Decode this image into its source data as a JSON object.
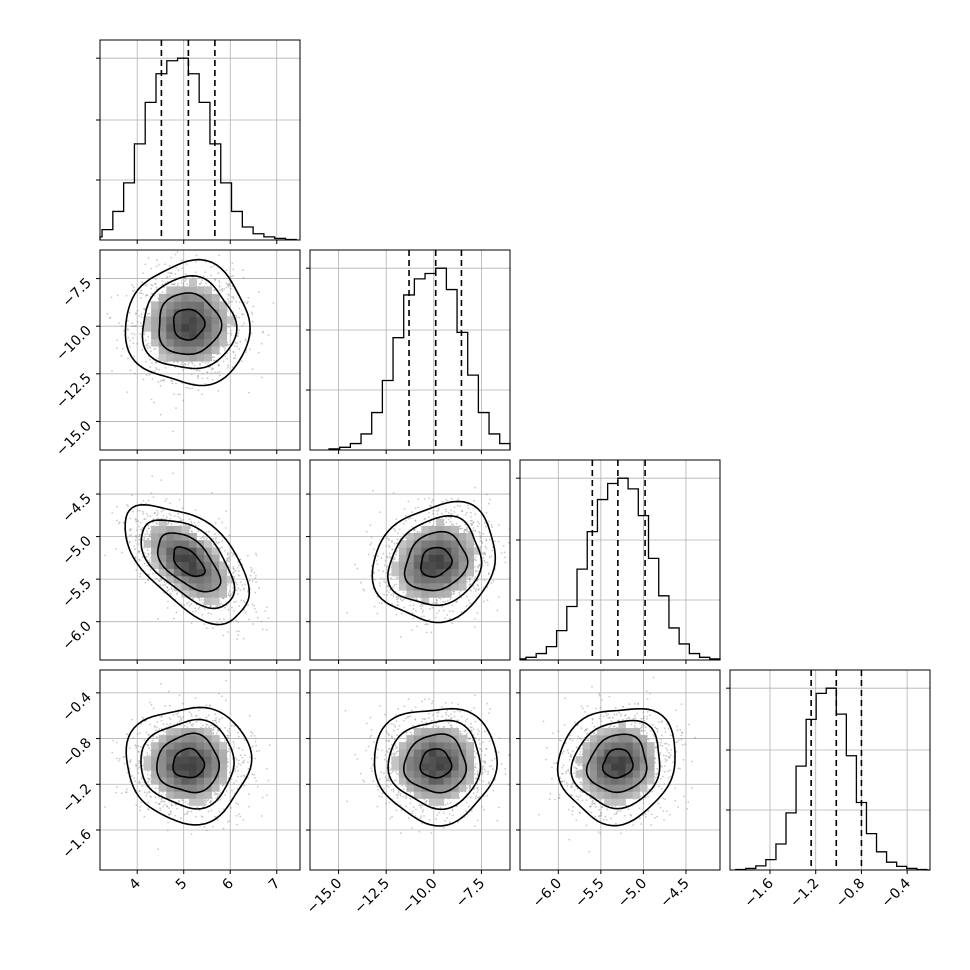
{
  "chart_data": {
    "type": "corner",
    "grid": true,
    "quantile_lines": "dashed",
    "contour_levels": 4,
    "parameters": [
      {
        "index": 0,
        "range": [
          3.2,
          7.5
        ],
        "ticks": [
          4,
          5,
          6,
          7
        ],
        "tick_labels": [
          "4",
          "5",
          "6",
          "7"
        ],
        "median": 5.1,
        "q16": 4.52,
        "q84": 5.67,
        "sigma": 0.58,
        "histogram_counts": [
          2,
          6,
          20,
          55,
          110,
          185,
          265,
          320,
          345,
          350,
          320,
          265,
          185,
          110,
          55,
          25,
          12,
          6,
          3,
          1
        ]
      },
      {
        "index": 1,
        "range": [
          -16.5,
          -6.0
        ],
        "ticks": [
          -15.0,
          -12.5,
          -10.0,
          -7.5
        ],
        "tick_labels": [
          "−15.0",
          "−12.5",
          "−10.0",
          "−7.5"
        ],
        "median": -9.9,
        "q16": -11.3,
        "q84": -8.55,
        "sigma": 1.4,
        "histogram_counts": [
          2,
          5,
          12,
          30,
          70,
          130,
          210,
          290,
          320,
          330,
          340,
          300,
          220,
          140,
          70,
          30,
          12,
          4,
          1,
          0
        ]
      },
      {
        "index": 2,
        "range": [
          -6.45,
          -4.1
        ],
        "ticks": [
          -6.0,
          -5.5,
          -5.0,
          -4.5
        ],
        "tick_labels": [
          "−6.0",
          "−5.5",
          "−5.0",
          "−4.5"
        ],
        "median": -5.3,
        "q16": -5.6,
        "q84": -4.98,
        "sigma": 0.3,
        "histogram_counts": [
          2,
          5,
          12,
          25,
          55,
          100,
          170,
          240,
          300,
          330,
          340,
          320,
          270,
          190,
          120,
          60,
          30,
          12,
          5,
          2
        ]
      },
      {
        "index": 3,
        "range": [
          -1.95,
          -0.2
        ],
        "ticks": [
          -1.6,
          -1.2,
          -0.8,
          -0.4
        ],
        "tick_labels": [
          "−1.6",
          "−1.2",
          "−0.8",
          "−0.4"
        ],
        "median": -1.02,
        "q16": -1.24,
        "q84": -0.8,
        "sigma": 0.22,
        "histogram_counts": [
          1,
          3,
          8,
          20,
          50,
          110,
          200,
          290,
          340,
          350,
          300,
          220,
          130,
          70,
          35,
          15,
          7,
          3,
          1,
          0
        ]
      }
    ],
    "correlations": [
      {
        "pair": [
          1,
          0
        ],
        "rho": 0.0
      },
      {
        "pair": [
          2,
          0
        ],
        "rho": -0.55
      },
      {
        "pair": [
          2,
          1
        ],
        "rho": 0.15
      },
      {
        "pair": [
          3,
          0
        ],
        "rho": 0.0
      },
      {
        "pair": [
          3,
          1
        ],
        "rho": 0.0
      },
      {
        "pair": [
          3,
          2
        ],
        "rho": 0.1
      }
    ]
  }
}
